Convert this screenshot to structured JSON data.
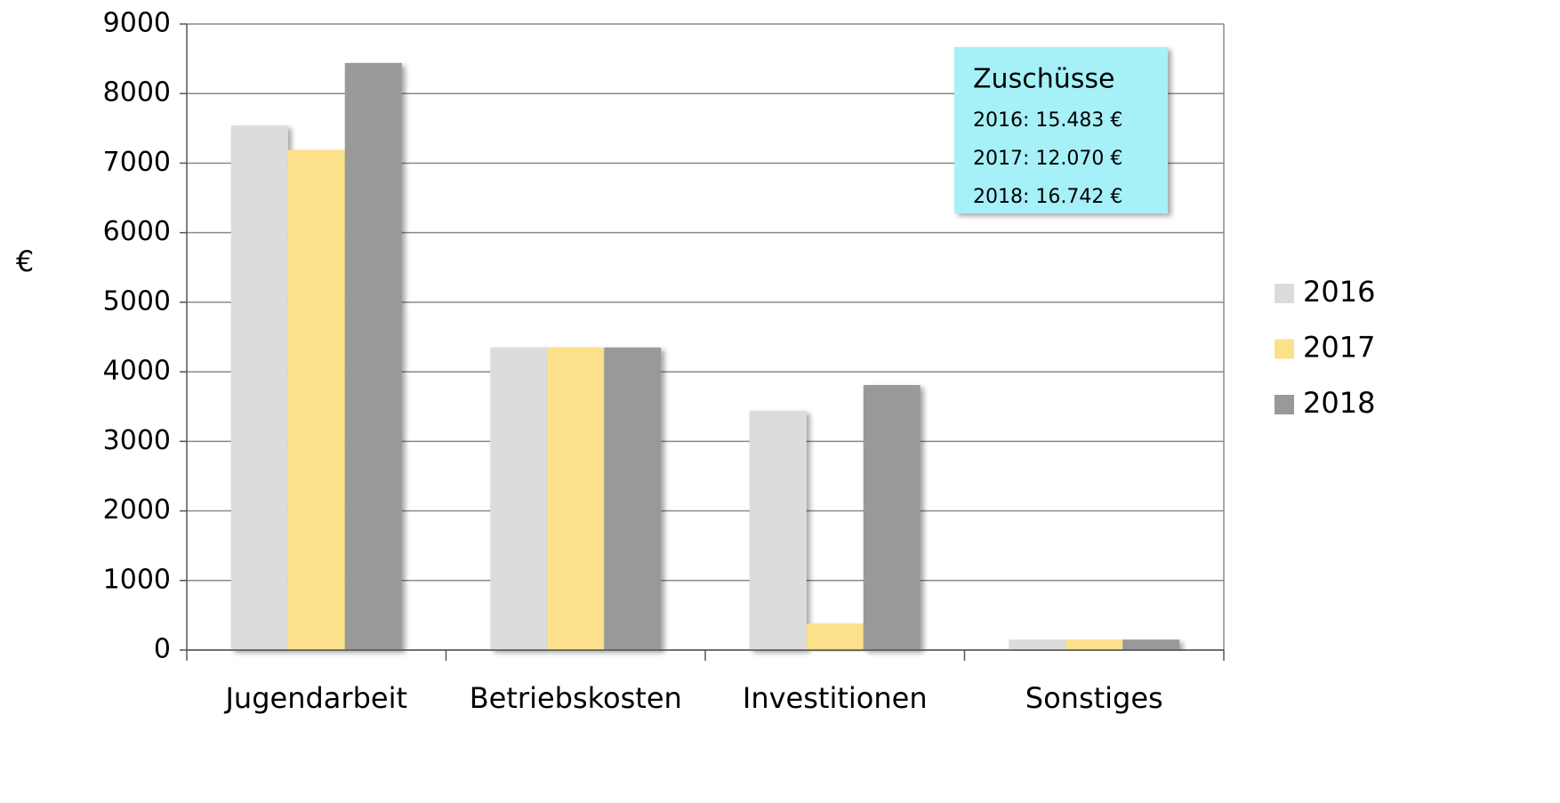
{
  "chart_data": {
    "type": "bar",
    "ylabel": "€",
    "categories": [
      "Jugendarbeit",
      "Betriebskosten",
      "Investitionen",
      "Sonstiges"
    ],
    "series": [
      {
        "name": "2016",
        "color": "#dcdcdc",
        "values": [
          7540,
          4350,
          3440,
          150
        ]
      },
      {
        "name": "2017",
        "color": "#fce08a",
        "values": [
          7190,
          4350,
          380,
          150
        ]
      },
      {
        "name": "2018",
        "color": "#999999",
        "values": [
          8440,
          4350,
          3810,
          150
        ]
      }
    ],
    "ylim": [
      0,
      9000
    ],
    "yticks": [
      0,
      1000,
      2000,
      3000,
      4000,
      5000,
      6000,
      7000,
      8000,
      9000
    ],
    "grid": true,
    "legend": "right",
    "annotation": {
      "title": "Zuschüsse",
      "lines": [
        "2016: 15.483 €",
        "2017: 12.070 €",
        "2018: 16.742 €"
      ]
    }
  }
}
